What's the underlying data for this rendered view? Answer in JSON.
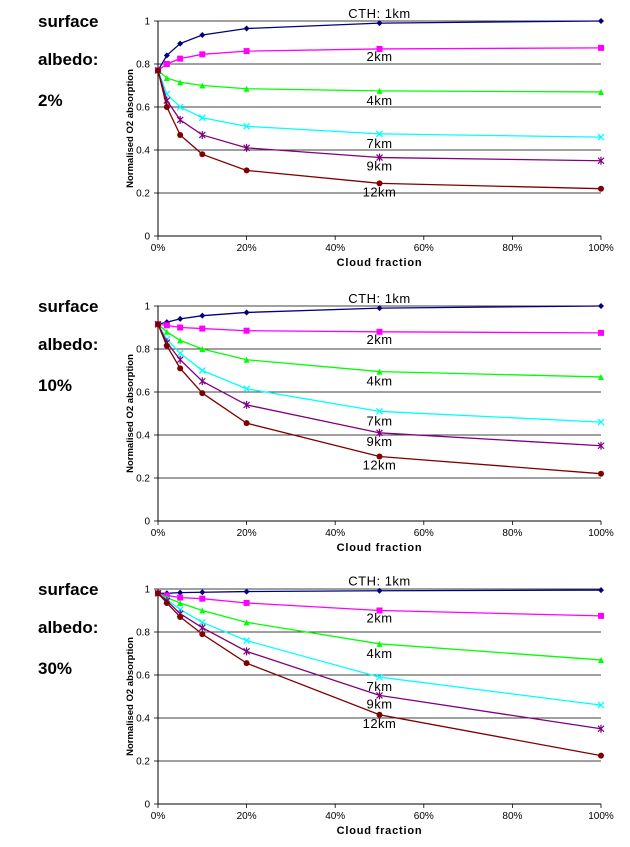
{
  "panels": [
    {
      "label_lines": [
        "surface",
        "albedo:",
        "2%"
      ]
    },
    {
      "label_lines": [
        "surface",
        "albedo:",
        "10%"
      ]
    },
    {
      "label_lines": [
        "surface",
        "albedo:",
        "30%"
      ]
    }
  ],
  "chart_data": [
    {
      "type": "line",
      "xlabel": "Cloud fraction",
      "ylabel": "Normalised O2 absorption",
      "xlim": [
        0,
        100
      ],
      "ylim": [
        0,
        1
      ],
      "xticks": [
        "0%",
        "20%",
        "40%",
        "60%",
        "80%",
        "100%"
      ],
      "yticks": [
        "0",
        "0.2",
        "0.4",
        "0.6",
        "0.8",
        "1"
      ],
      "grid": "horizontal",
      "x": [
        0,
        2,
        5,
        10,
        20,
        50,
        100
      ],
      "series": [
        {
          "name": "CTH: 1km",
          "color": "#000080",
          "marker": "diamond",
          "values": [
            0.77,
            0.84,
            0.895,
            0.935,
            0.965,
            0.99,
            1.0
          ]
        },
        {
          "name": "2km",
          "color": "#ff00ff",
          "marker": "square",
          "values": [
            0.77,
            0.8,
            0.825,
            0.845,
            0.86,
            0.87,
            0.875
          ]
        },
        {
          "name": "4km",
          "color": "#00ff00",
          "marker": "triangle",
          "values": [
            0.77,
            0.735,
            0.715,
            0.7,
            0.685,
            0.675,
            0.67
          ]
        },
        {
          "name": "7km",
          "color": "#00ffff",
          "marker": "x",
          "values": [
            0.77,
            0.66,
            0.6,
            0.55,
            0.51,
            0.475,
            0.46
          ]
        },
        {
          "name": "9km",
          "color": "#800080",
          "marker": "star",
          "values": [
            0.77,
            0.63,
            0.54,
            0.47,
            0.41,
            0.365,
            0.35
          ]
        },
        {
          "name": "12km",
          "color": "#800000",
          "marker": "circle",
          "values": [
            0.77,
            0.6,
            0.47,
            0.38,
            0.305,
            0.245,
            0.22
          ]
        }
      ]
    },
    {
      "type": "line",
      "xlabel": "Cloud fraction",
      "ylabel": "Normalised O2 absorption",
      "xlim": [
        0,
        100
      ],
      "ylim": [
        0,
        1
      ],
      "xticks": [
        "0%",
        "20%",
        "40%",
        "60%",
        "80%",
        "100%"
      ],
      "yticks": [
        "0",
        "0.2",
        "0.4",
        "0.6",
        "0.8",
        "1"
      ],
      "grid": "horizontal",
      "x": [
        0,
        2,
        5,
        10,
        20,
        50,
        100
      ],
      "series": [
        {
          "name": "CTH: 1km",
          "color": "#000080",
          "marker": "diamond",
          "values": [
            0.915,
            0.925,
            0.94,
            0.955,
            0.97,
            0.99,
            1.0
          ]
        },
        {
          "name": "2km",
          "color": "#ff00ff",
          "marker": "square",
          "values": [
            0.915,
            0.91,
            0.9,
            0.895,
            0.885,
            0.88,
            0.875
          ]
        },
        {
          "name": "4km",
          "color": "#00ff00",
          "marker": "triangle",
          "values": [
            0.915,
            0.88,
            0.84,
            0.8,
            0.75,
            0.695,
            0.67
          ]
        },
        {
          "name": "7km",
          "color": "#00ffff",
          "marker": "x",
          "values": [
            0.915,
            0.845,
            0.78,
            0.7,
            0.615,
            0.51,
            0.46
          ]
        },
        {
          "name": "9km",
          "color": "#800080",
          "marker": "star",
          "values": [
            0.915,
            0.83,
            0.75,
            0.65,
            0.54,
            0.41,
            0.35
          ]
        },
        {
          "name": "12km",
          "color": "#800000",
          "marker": "circle",
          "values": [
            0.915,
            0.815,
            0.71,
            0.595,
            0.455,
            0.3,
            0.22
          ]
        }
      ]
    },
    {
      "type": "line",
      "xlabel": "Cloud fraction",
      "ylabel": "Normalised O2 absorption",
      "xlim": [
        0,
        100
      ],
      "ylim": [
        0,
        1
      ],
      "xticks": [
        "0%",
        "20%",
        "40%",
        "60%",
        "80%",
        "100%"
      ],
      "yticks": [
        "0",
        "0.2",
        "0.4",
        "0.6",
        "0.8",
        "1"
      ],
      "grid": "horizontal",
      "x": [
        0,
        2,
        5,
        10,
        20,
        50,
        100
      ],
      "series": [
        {
          "name": "CTH: 1km",
          "color": "#000080",
          "marker": "diamond",
          "values": [
            0.98,
            0.98,
            0.983,
            0.985,
            0.988,
            0.992,
            0.995
          ]
        },
        {
          "name": "2km",
          "color": "#ff00ff",
          "marker": "square",
          "values": [
            0.98,
            0.97,
            0.96,
            0.955,
            0.935,
            0.9,
            0.875
          ]
        },
        {
          "name": "4km",
          "color": "#00ff00",
          "marker": "triangle",
          "values": [
            0.98,
            0.96,
            0.935,
            0.9,
            0.845,
            0.745,
            0.67
          ]
        },
        {
          "name": "7km",
          "color": "#00ffff",
          "marker": "x",
          "values": [
            0.98,
            0.95,
            0.905,
            0.845,
            0.76,
            0.59,
            0.46
          ]
        },
        {
          "name": "9km",
          "color": "#800080",
          "marker": "star",
          "values": [
            0.98,
            0.945,
            0.885,
            0.82,
            0.71,
            0.505,
            0.35
          ]
        },
        {
          "name": "12km",
          "color": "#800000",
          "marker": "circle",
          "values": [
            0.98,
            0.935,
            0.87,
            0.79,
            0.655,
            0.415,
            0.225
          ]
        }
      ]
    }
  ]
}
